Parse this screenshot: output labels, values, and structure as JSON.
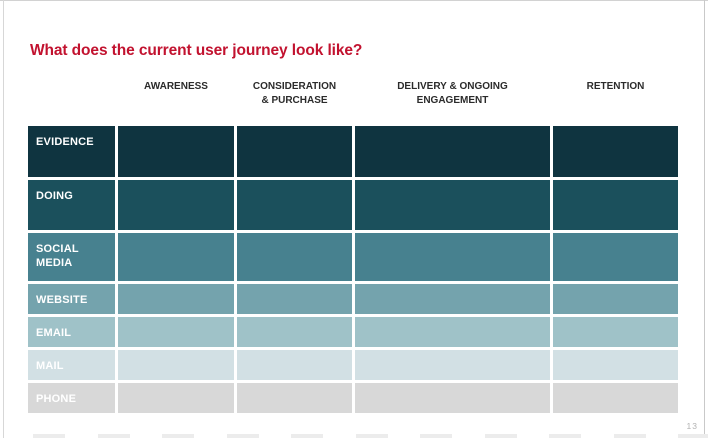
{
  "slide": {
    "title": "What does the current user journey look like?",
    "title_color": "#c2122f",
    "page_number": "13"
  },
  "table": {
    "column_headers": [
      "AWARENESS",
      "CONSIDERATION\n& PURCHASE",
      "DELIVERY & ONGOING\nENGAGEMENT",
      "RETENTION"
    ],
    "rows": [
      {
        "label": "EVIDENCE",
        "color": "#0f3440"
      },
      {
        "label": "DOING",
        "color": "#1b505c"
      },
      {
        "label": "SOCIAL MEDIA",
        "color": "#47818f"
      },
      {
        "label": "WEBSITE",
        "color": "#74a3ad"
      },
      {
        "label": "EMAIL",
        "color": "#9fc2c8"
      },
      {
        "label": "MAIL",
        "color": "#d2e0e4"
      },
      {
        "label": "PHONE",
        "color": "#d8d8d8"
      }
    ]
  },
  "bottom_strip": {
    "shape_count": 11
  }
}
